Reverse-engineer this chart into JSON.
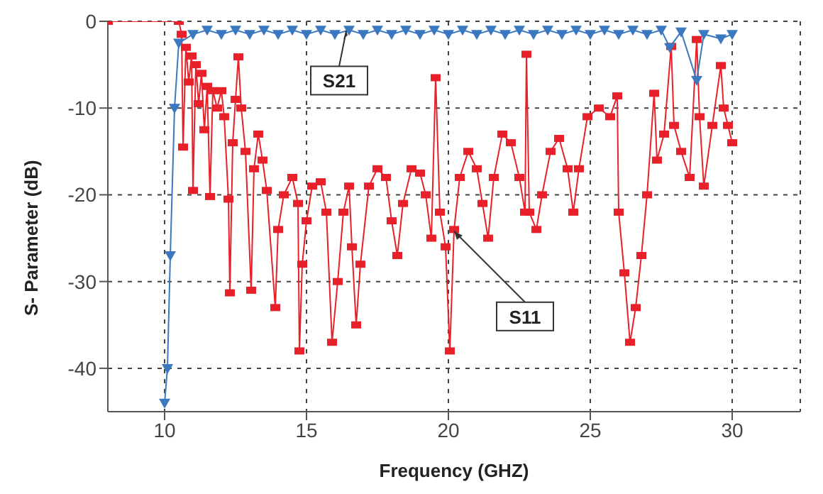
{
  "chart_data": {
    "type": "line",
    "xlabel": "Frequency (GHZ)",
    "ylabel": "S- Parameter (dB)",
    "xlim": [
      8,
      32.4
    ],
    "xticks": [
      10,
      15,
      20,
      25,
      30
    ],
    "ylim": [
      -45,
      0
    ],
    "yticks": [
      -40,
      -30,
      -20,
      -10,
      0
    ],
    "grid": true,
    "legend": false,
    "line_style": "solid",
    "series": [
      {
        "color": "#e8202a",
        "marker": "square",
        "x": [
          8,
          10.5,
          10.6,
          10.65,
          10.75,
          10.85,
          10.95,
          11.0,
          11.1,
          11.2,
          11.3,
          11.4,
          11.5,
          11.6,
          11.7,
          11.85,
          12.0,
          12.1,
          12.25,
          12.3,
          12.4,
          12.5,
          12.6,
          12.7,
          12.85,
          13.05,
          13.15,
          13.3,
          13.45,
          13.6,
          13.9,
          14.0,
          14.2,
          14.5,
          14.7,
          14.75,
          14.85,
          15.0,
          15.2,
          15.5,
          15.7,
          15.9,
          16.1,
          16.3,
          16.5,
          16.6,
          16.75,
          16.9,
          17.2,
          17.5,
          17.8,
          18.0,
          18.2,
          18.4,
          18.7,
          19.0,
          19.2,
          19.4,
          19.55,
          19.7,
          19.9,
          20.05,
          20.2,
          20.4,
          20.7,
          21.0,
          21.2,
          21.4,
          21.6,
          21.9,
          22.2,
          22.5,
          22.7,
          22.75,
          22.85,
          23.1,
          23.3,
          23.6,
          23.9,
          24.2,
          24.4,
          24.6,
          24.9,
          25.3,
          25.7,
          25.95,
          26.0,
          26.2,
          26.4,
          26.6,
          26.8,
          27.0,
          27.25,
          27.35,
          27.6,
          27.85,
          27.95,
          28.2,
          28.5,
          28.75,
          28.85,
          29.0,
          29.3,
          29.6,
          29.7,
          29.85,
          30.0
        ],
        "values": [
          0,
          0,
          -1.5,
          -14.5,
          -3,
          -7,
          -4,
          -19.5,
          -5,
          -9.5,
          -6,
          -12.5,
          -7.5,
          -20.2,
          -8,
          -10,
          -8,
          -11,
          -20.5,
          -31.3,
          -14,
          -9,
          -4.1,
          -10,
          -15,
          -31,
          -17,
          -13,
          -16,
          -19.5,
          -33,
          -24,
          -20,
          -18,
          -21,
          -38,
          -28,
          -23,
          -19,
          -18.5,
          -22,
          -37,
          -30,
          -22,
          -19,
          -26,
          -35,
          -28,
          -19,
          -17,
          -18,
          -23,
          -27,
          -21,
          -17,
          -17.5,
          -20,
          -25,
          -6.5,
          -22,
          -26,
          -38,
          -24,
          -18,
          -15,
          -17,
          -21,
          -25,
          -18,
          -13,
          -14,
          -18,
          -22,
          -3.8,
          -22,
          -24,
          -20,
          -15,
          -13.5,
          -17,
          -22,
          -17,
          -11,
          -10,
          -11,
          -8.6,
          -22,
          -29,
          -37,
          -33,
          -27,
          -20,
          -8.3,
          -16,
          -13,
          -2.9,
          -12,
          -15,
          -18,
          -2.1,
          -11,
          -19,
          -12,
          -5.1,
          -10,
          -12,
          -14
        ]
      },
      {
        "color": "#3a78c0",
        "marker": "triangle",
        "x": [
          10.0,
          10.1,
          10.2,
          10.35,
          10.5,
          11,
          11.5,
          12,
          12.5,
          13,
          13.5,
          14,
          14.5,
          15,
          15.5,
          16,
          16.5,
          17,
          17.5,
          18,
          18.5,
          19,
          19.5,
          20,
          20.5,
          21,
          21.5,
          22,
          22.5,
          23,
          23.5,
          24,
          24.5,
          25,
          25.5,
          26,
          26.5,
          27,
          27.5,
          27.8,
          28.2,
          28.75,
          29.0,
          29.6,
          30.0
        ],
        "values": [
          -44,
          -40,
          -27,
          -10,
          -2.5,
          -1.5,
          -1,
          -1.5,
          -1,
          -1.5,
          -1,
          -1.5,
          -1,
          -1.5,
          -1,
          -1.5,
          -1,
          -1.5,
          -1,
          -1.5,
          -1,
          -1.5,
          -1,
          -1.5,
          -1,
          -1.5,
          -1,
          -1.5,
          -1,
          -1.5,
          -1,
          -1.5,
          -1,
          -1.5,
          -1,
          -1.5,
          -1,
          -1.5,
          -1,
          -3,
          -1.2,
          -6.8,
          -1.5,
          -2,
          -1.5
        ]
      }
    ],
    "annotations": [
      {
        "text": "S21",
        "x": 16.4,
        "y": -1.1
      },
      {
        "text": "S11",
        "x": 20.2,
        "y": -24.2
      }
    ]
  }
}
